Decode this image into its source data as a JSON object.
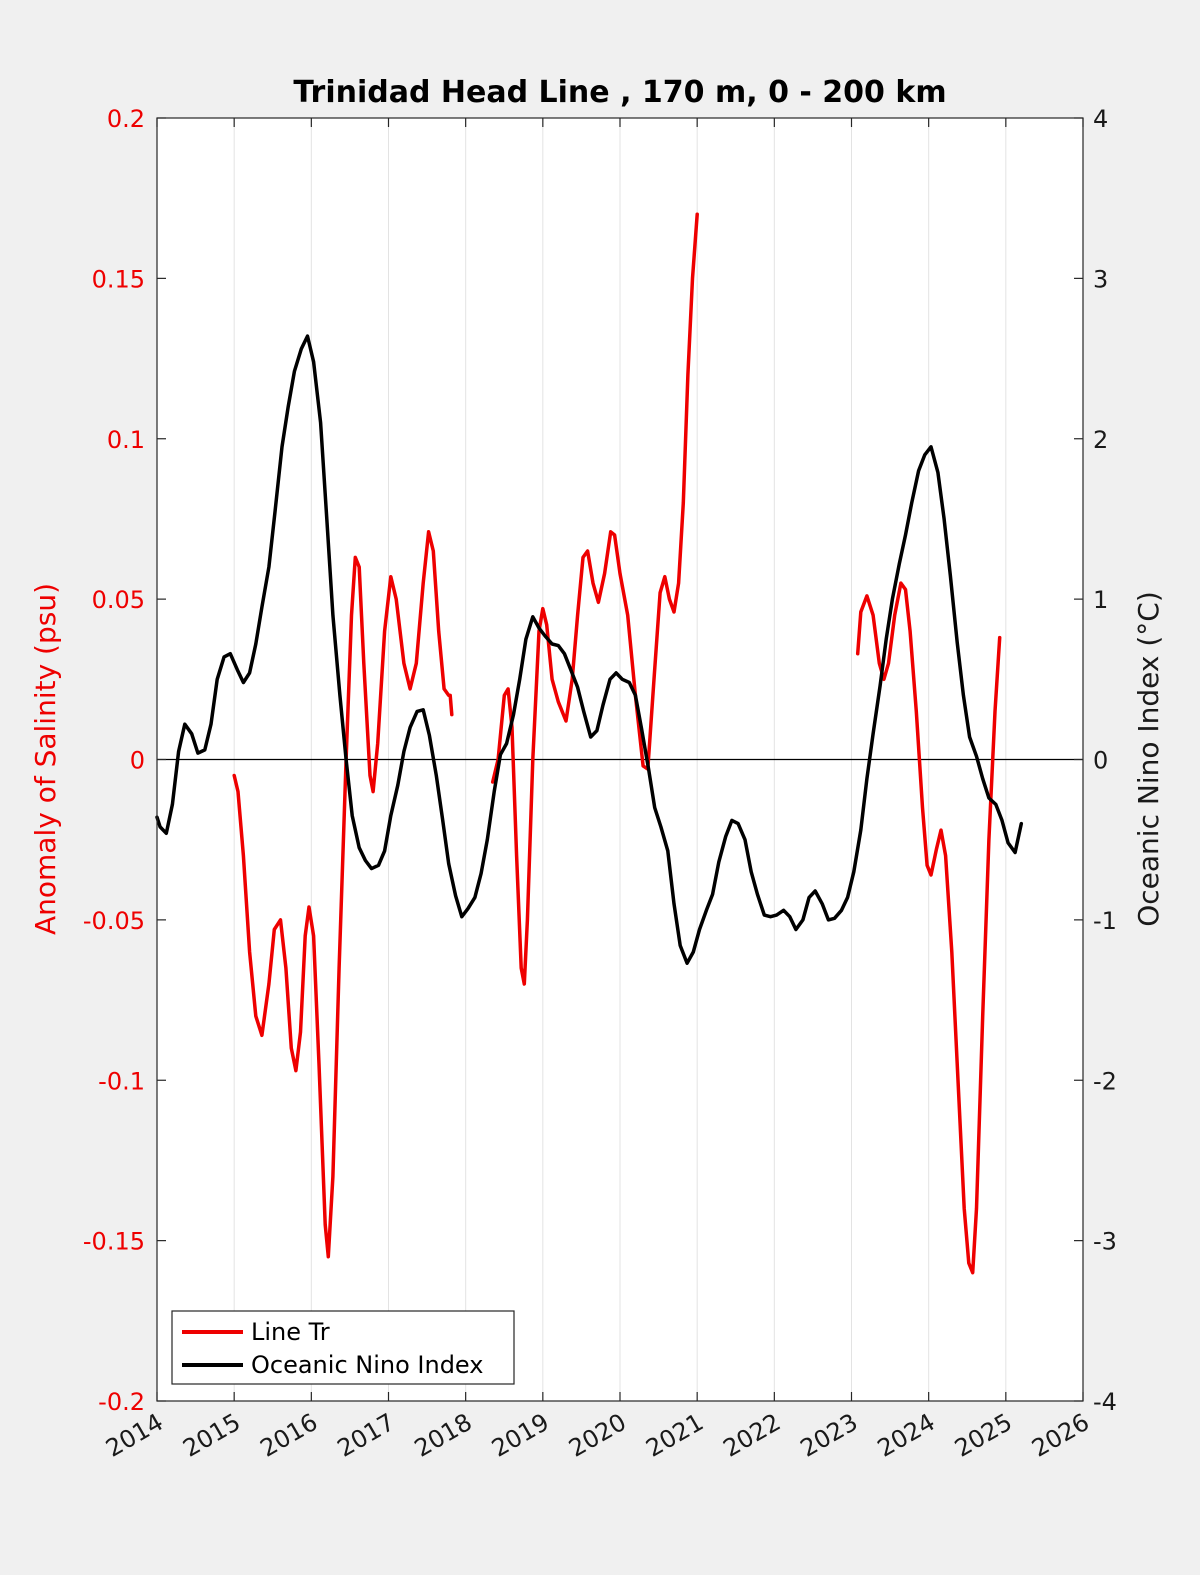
{
  "chart_data": {
    "type": "line",
    "title": "Trinidad Head Line , 170 m, 0 - 200 km",
    "ylabel_left": "Anomaly of Salinity (psu)",
    "ylabel_right": "Oceanic Nino Index (°C)",
    "xlim": [
      2014,
      2026
    ],
    "ylim_left": [
      -0.2,
      0.2
    ],
    "ylim_right": [
      -4,
      4
    ],
    "x_ticks": [
      "2014",
      "2015",
      "2016",
      "2017",
      "2018",
      "2019",
      "2020",
      "2021",
      "2022",
      "2023",
      "2024",
      "2025",
      "2026"
    ],
    "y_ticks_left": [
      "0.2",
      "0.15",
      "0.1",
      "0.05",
      "0",
      "-0.05",
      "-0.1",
      "-0.15",
      "-0.2"
    ],
    "y_ticks_right": [
      "4",
      "3",
      "2",
      "1",
      "0",
      "-1",
      "-2",
      "-3",
      "-4"
    ],
    "grid": "vertical",
    "zero_line": true,
    "colors": {
      "salinity": "#ee0000",
      "oni": "#000000",
      "left_axis": "#ee0000"
    },
    "legend": {
      "placement": "bottom-left"
    },
    "series": [
      {
        "name": "Line Tr",
        "axis": "left",
        "color": "#ee0000",
        "segments": [
          [
            [
              2015.0,
              -0.005
            ],
            [
              2015.05,
              -0.01
            ],
            [
              2015.12,
              -0.03
            ],
            [
              2015.2,
              -0.06
            ],
            [
              2015.28,
              -0.08
            ],
            [
              2015.36,
              -0.086
            ],
            [
              2015.45,
              -0.07
            ],
            [
              2015.52,
              -0.053
            ],
            [
              2015.6,
              -0.05
            ],
            [
              2015.67,
              -0.065
            ],
            [
              2015.74,
              -0.09
            ],
            [
              2015.8,
              -0.097
            ],
            [
              2015.86,
              -0.085
            ],
            [
              2015.92,
              -0.055
            ],
            [
              2015.97,
              -0.046
            ],
            [
              2016.03,
              -0.055
            ],
            [
              2016.1,
              -0.095
            ],
            [
              2016.18,
              -0.145
            ],
            [
              2016.22,
              -0.155
            ],
            [
              2016.28,
              -0.13
            ],
            [
              2016.36,
              -0.065
            ],
            [
              2016.45,
              0.0
            ],
            [
              2016.52,
              0.045
            ],
            [
              2016.57,
              0.063
            ],
            [
              2016.62,
              0.06
            ],
            [
              2016.68,
              0.03
            ],
            [
              2016.76,
              -0.005
            ],
            [
              2016.8,
              -0.01
            ],
            [
              2016.86,
              0.005
            ],
            [
              2016.95,
              0.04
            ],
            [
              2017.03,
              0.057
            ],
            [
              2017.1,
              0.05
            ],
            [
              2017.2,
              0.03
            ],
            [
              2017.28,
              0.022
            ],
            [
              2017.36,
              0.03
            ],
            [
              2017.45,
              0.055
            ],
            [
              2017.52,
              0.071
            ],
            [
              2017.58,
              0.065
            ],
            [
              2017.65,
              0.04
            ],
            [
              2017.72,
              0.022
            ],
            [
              2017.78,
              0.02
            ],
            [
              2017.8,
              0.02
            ],
            [
              2017.82,
              0.014
            ]
          ],
          [
            [
              2018.35,
              -0.007
            ],
            [
              2018.42,
              0.0
            ],
            [
              2018.5,
              0.02
            ],
            [
              2018.55,
              0.022
            ],
            [
              2018.6,
              0.01
            ],
            [
              2018.66,
              -0.03
            ],
            [
              2018.72,
              -0.065
            ],
            [
              2018.76,
              -0.07
            ],
            [
              2018.8,
              -0.05
            ],
            [
              2018.87,
              0.0
            ],
            [
              2018.95,
              0.04
            ],
            [
              2019.0,
              0.047
            ],
            [
              2019.05,
              0.042
            ],
            [
              2019.12,
              0.025
            ],
            [
              2019.2,
              0.018
            ],
            [
              2019.3,
              0.012
            ],
            [
              2019.38,
              0.025
            ],
            [
              2019.45,
              0.045
            ],
            [
              2019.52,
              0.063
            ],
            [
              2019.58,
              0.065
            ],
            [
              2019.65,
              0.055
            ],
            [
              2019.72,
              0.049
            ],
            [
              2019.8,
              0.058
            ],
            [
              2019.88,
              0.071
            ],
            [
              2019.93,
              0.07
            ],
            [
              2020.0,
              0.058
            ],
            [
              2020.1,
              0.045
            ],
            [
              2020.2,
              0.02
            ],
            [
              2020.3,
              -0.002
            ],
            [
              2020.36,
              -0.003
            ],
            [
              2020.44,
              0.025
            ],
            [
              2020.52,
              0.052
            ],
            [
              2020.58,
              0.057
            ],
            [
              2020.64,
              0.05
            ],
            [
              2020.7,
              0.046
            ],
            [
              2020.76,
              0.055
            ],
            [
              2020.82,
              0.08
            ],
            [
              2020.88,
              0.12
            ],
            [
              2020.94,
              0.15
            ],
            [
              2021.0,
              0.17
            ]
          ],
          [
            [
              2023.08,
              0.033
            ],
            [
              2023.12,
              0.046
            ],
            [
              2023.2,
              0.051
            ],
            [
              2023.28,
              0.045
            ],
            [
              2023.36,
              0.03
            ],
            [
              2023.42,
              0.025
            ],
            [
              2023.48,
              0.03
            ],
            [
              2023.56,
              0.045
            ],
            [
              2023.64,
              0.055
            ],
            [
              2023.7,
              0.053
            ],
            [
              2023.76,
              0.04
            ],
            [
              2023.84,
              0.015
            ],
            [
              2023.92,
              -0.015
            ],
            [
              2023.98,
              -0.033
            ],
            [
              2024.03,
              -0.036
            ],
            [
              2024.1,
              -0.028
            ],
            [
              2024.16,
              -0.022
            ],
            [
              2024.22,
              -0.03
            ],
            [
              2024.3,
              -0.06
            ],
            [
              2024.38,
              -0.1
            ],
            [
              2024.46,
              -0.14
            ],
            [
              2024.52,
              -0.157
            ],
            [
              2024.57,
              -0.16
            ],
            [
              2024.62,
              -0.14
            ],
            [
              2024.7,
              -0.08
            ],
            [
              2024.78,
              -0.025
            ],
            [
              2024.86,
              0.015
            ],
            [
              2024.92,
              0.038
            ]
          ]
        ]
      },
      {
        "name": "Oceanic Nino Index",
        "axis": "right",
        "color": "#000000",
        "segments": [
          [
            [
              2014.0,
              -0.36
            ],
            [
              2014.04,
              -0.42
            ],
            [
              2014.12,
              -0.46
            ],
            [
              2014.2,
              -0.28
            ],
            [
              2014.28,
              0.05
            ],
            [
              2014.36,
              0.22
            ],
            [
              2014.45,
              0.16
            ],
            [
              2014.53,
              0.04
            ],
            [
              2014.62,
              0.06
            ],
            [
              2014.7,
              0.22
            ],
            [
              2014.78,
              0.5
            ],
            [
              2014.87,
              0.64
            ],
            [
              2014.95,
              0.66
            ],
            [
              2015.04,
              0.56
            ],
            [
              2015.12,
              0.48
            ],
            [
              2015.2,
              0.54
            ],
            [
              2015.28,
              0.72
            ],
            [
              2015.36,
              0.95
            ],
            [
              2015.45,
              1.2
            ],
            [
              2015.53,
              1.55
            ],
            [
              2015.62,
              1.95
            ],
            [
              2015.7,
              2.2
            ],
            [
              2015.78,
              2.42
            ],
            [
              2015.87,
              2.56
            ],
            [
              2015.95,
              2.64
            ],
            [
              2016.03,
              2.48
            ],
            [
              2016.12,
              2.1
            ],
            [
              2016.2,
              1.5
            ],
            [
              2016.28,
              0.9
            ],
            [
              2016.37,
              0.4
            ],
            [
              2016.45,
              0.0
            ],
            [
              2016.53,
              -0.35
            ],
            [
              2016.62,
              -0.55
            ],
            [
              2016.7,
              -0.63
            ],
            [
              2016.78,
              -0.68
            ],
            [
              2016.87,
              -0.66
            ],
            [
              2016.95,
              -0.57
            ],
            [
              2017.03,
              -0.35
            ],
            [
              2017.12,
              -0.16
            ],
            [
              2017.2,
              0.05
            ],
            [
              2017.28,
              0.2
            ],
            [
              2017.37,
              0.3
            ],
            [
              2017.45,
              0.31
            ],
            [
              2017.53,
              0.15
            ],
            [
              2017.62,
              -0.1
            ],
            [
              2017.7,
              -0.37
            ],
            [
              2017.78,
              -0.65
            ],
            [
              2017.87,
              -0.85
            ],
            [
              2017.95,
              -0.98
            ],
            [
              2018.03,
              -0.93
            ],
            [
              2018.12,
              -0.86
            ],
            [
              2018.2,
              -0.71
            ],
            [
              2018.28,
              -0.5
            ],
            [
              2018.37,
              -0.2
            ],
            [
              2018.45,
              0.03
            ],
            [
              2018.53,
              0.1
            ],
            [
              2018.62,
              0.28
            ],
            [
              2018.7,
              0.5
            ],
            [
              2018.78,
              0.75
            ],
            [
              2018.87,
              0.89
            ],
            [
              2018.95,
              0.82
            ],
            [
              2019.03,
              0.77
            ],
            [
              2019.12,
              0.72
            ],
            [
              2019.2,
              0.71
            ],
            [
              2019.28,
              0.66
            ],
            [
              2019.37,
              0.55
            ],
            [
              2019.45,
              0.45
            ],
            [
              2019.53,
              0.3
            ],
            [
              2019.62,
              0.14
            ],
            [
              2019.7,
              0.18
            ],
            [
              2019.78,
              0.34
            ],
            [
              2019.87,
              0.5
            ],
            [
              2019.95,
              0.54
            ],
            [
              2020.03,
              0.5
            ],
            [
              2020.12,
              0.48
            ],
            [
              2020.2,
              0.4
            ],
            [
              2020.28,
              0.19
            ],
            [
              2020.37,
              -0.06
            ],
            [
              2020.45,
              -0.3
            ],
            [
              2020.53,
              -0.42
            ],
            [
              2020.62,
              -0.57
            ],
            [
              2020.7,
              -0.9
            ],
            [
              2020.78,
              -1.16
            ],
            [
              2020.87,
              -1.27
            ],
            [
              2020.95,
              -1.2
            ],
            [
              2021.03,
              -1.06
            ],
            [
              2021.12,
              -0.94
            ],
            [
              2021.2,
              -0.84
            ],
            [
              2021.28,
              -0.64
            ],
            [
              2021.37,
              -0.48
            ],
            [
              2021.45,
              -0.38
            ],
            [
              2021.53,
              -0.4
            ],
            [
              2021.62,
              -0.5
            ],
            [
              2021.7,
              -0.7
            ],
            [
              2021.78,
              -0.84
            ],
            [
              2021.87,
              -0.97
            ],
            [
              2021.95,
              -0.98
            ],
            [
              2022.03,
              -0.97
            ],
            [
              2022.12,
              -0.94
            ],
            [
              2022.2,
              -0.98
            ],
            [
              2022.28,
              -1.06
            ],
            [
              2022.37,
              -1.0
            ],
            [
              2022.45,
              -0.86
            ],
            [
              2022.53,
              -0.82
            ],
            [
              2022.62,
              -0.9
            ],
            [
              2022.7,
              -1.0
            ],
            [
              2022.78,
              -0.99
            ],
            [
              2022.87,
              -0.94
            ],
            [
              2022.95,
              -0.86
            ],
            [
              2023.03,
              -0.7
            ],
            [
              2023.12,
              -0.44
            ],
            [
              2023.2,
              -0.12
            ],
            [
              2023.28,
              0.16
            ],
            [
              2023.37,
              0.46
            ],
            [
              2023.45,
              0.75
            ],
            [
              2023.53,
              1.0
            ],
            [
              2023.62,
              1.22
            ],
            [
              2023.7,
              1.4
            ],
            [
              2023.78,
              1.6
            ],
            [
              2023.87,
              1.8
            ],
            [
              2023.95,
              1.9
            ],
            [
              2024.03,
              1.95
            ],
            [
              2024.12,
              1.79
            ],
            [
              2024.2,
              1.5
            ],
            [
              2024.28,
              1.15
            ],
            [
              2024.37,
              0.73
            ],
            [
              2024.45,
              0.4
            ],
            [
              2024.53,
              0.14
            ],
            [
              2024.62,
              0.02
            ],
            [
              2024.7,
              -0.12
            ],
            [
              2024.78,
              -0.24
            ],
            [
              2024.87,
              -0.28
            ],
            [
              2024.95,
              -0.38
            ],
            [
              2025.03,
              -0.52
            ],
            [
              2025.12,
              -0.58
            ],
            [
              2025.2,
              -0.4
            ]
          ]
        ]
      }
    ]
  }
}
